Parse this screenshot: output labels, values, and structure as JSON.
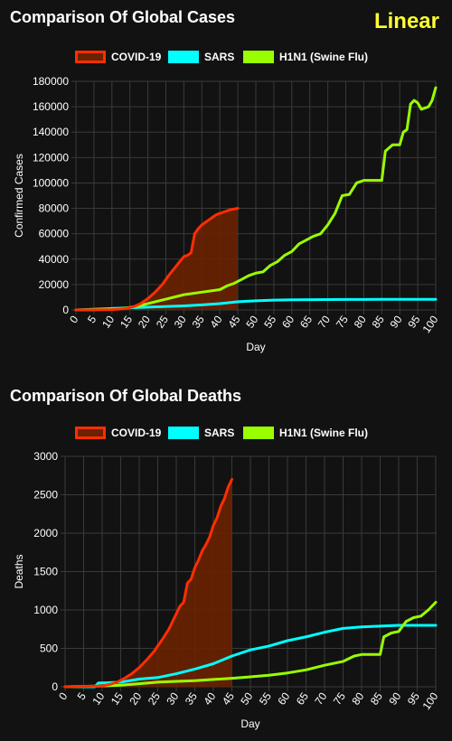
{
  "scale_label": "Linear",
  "colors": {
    "covid": "#ff2e00",
    "covid_fill": "#6a2200",
    "sars": "#00ffff",
    "h1n1": "#99ff00",
    "grid": "#3a3a3a",
    "background": "#121212"
  },
  "chart_data": [
    {
      "type": "line",
      "title": "Comparison Of Global Cases",
      "xlabel": "Day",
      "ylabel": "Confirmed Cases",
      "xlim": [
        0,
        100
      ],
      "ylim": [
        0,
        180000
      ],
      "x_ticks": [
        "0",
        "5",
        "10",
        "15",
        "20",
        "25",
        "30",
        "35",
        "40",
        "45",
        "50",
        "55",
        "60",
        "65",
        "70",
        "75",
        "80",
        "85",
        "90",
        "95",
        "100"
      ],
      "y_ticks": [
        "0",
        "20000",
        "40000",
        "60000",
        "80000",
        "100000",
        "120000",
        "140000",
        "160000",
        "180000"
      ],
      "grid": true,
      "legend_position": "top",
      "series": [
        {
          "name": "COVID-19",
          "fill": true,
          "x": [
            0,
            5,
            10,
            12,
            14,
            16,
            18,
            20,
            22,
            24,
            26,
            28,
            30,
            31,
            32,
            33,
            34,
            35,
            36,
            37,
            38,
            39,
            40,
            41,
            42,
            43,
            44,
            45
          ],
          "y": [
            0,
            50,
            300,
            600,
            1200,
            2500,
            5000,
            9000,
            14000,
            20000,
            28000,
            35000,
            42000,
            43000,
            45000,
            60000,
            64000,
            67000,
            69000,
            71000,
            73000,
            75000,
            76000,
            77000,
            78000,
            79000,
            79500,
            80000
          ]
        },
        {
          "name": "SARS",
          "fill": false,
          "x": [
            0,
            10,
            20,
            30,
            35,
            40,
            45,
            50,
            55,
            60,
            65,
            70,
            75,
            80,
            85,
            90,
            95,
            100
          ],
          "y": [
            0,
            1200,
            2200,
            3200,
            4000,
            5000,
            6500,
            7200,
            7700,
            8000,
            8100,
            8200,
            8250,
            8300,
            8350,
            8400,
            8400,
            8400
          ]
        },
        {
          "name": "H1N1 (Swine Flu)",
          "fill": false,
          "x": [
            0,
            10,
            14,
            18,
            20,
            25,
            30,
            35,
            40,
            42,
            44,
            46,
            48,
            50,
            52,
            54,
            56,
            58,
            60,
            62,
            64,
            66,
            68,
            70,
            72,
            74,
            76,
            78,
            80,
            82,
            84,
            85,
            86,
            88,
            90,
            91,
            92,
            93,
            94,
            95,
            96,
            98,
            99,
            100
          ],
          "y": [
            0,
            500,
            1500,
            3500,
            5000,
            8500,
            12000,
            14000,
            16000,
            19000,
            21000,
            24000,
            27000,
            29000,
            30000,
            35000,
            38000,
            43000,
            46000,
            52000,
            55000,
            58000,
            60000,
            67000,
            76000,
            90000,
            91000,
            100000,
            102000,
            102000,
            102000,
            102000,
            125000,
            130000,
            130000,
            140000,
            142000,
            162000,
            165000,
            163000,
            158000,
            160000,
            165000,
            175000
          ]
        }
      ]
    },
    {
      "type": "line",
      "title": "Comparison Of Global Deaths",
      "xlabel": "Day",
      "ylabel": "Deaths",
      "xlim": [
        0,
        100
      ],
      "ylim": [
        0,
        3000
      ],
      "x_ticks": [
        "0",
        "5",
        "10",
        "15",
        "20",
        "25",
        "30",
        "35",
        "40",
        "45",
        "50",
        "55",
        "60",
        "65",
        "70",
        "75",
        "80",
        "85",
        "90",
        "95",
        "100"
      ],
      "y_ticks": [
        "0",
        "500",
        "1000",
        "1500",
        "2000",
        "2500",
        "3000"
      ],
      "grid": true,
      "legend_position": "top",
      "series": [
        {
          "name": "COVID-19",
          "fill": true,
          "x": [
            0,
            10,
            12,
            14,
            16,
            18,
            20,
            22,
            24,
            26,
            28,
            30,
            31,
            32,
            33,
            34,
            35,
            36,
            37,
            38,
            39,
            40,
            41,
            42,
            43,
            44,
            45
          ],
          "y": [
            0,
            10,
            30,
            60,
            110,
            170,
            250,
            350,
            460,
            600,
            750,
            950,
            1050,
            1100,
            1350,
            1400,
            1550,
            1650,
            1770,
            1850,
            1950,
            2100,
            2200,
            2350,
            2450,
            2600,
            2700
          ]
        },
        {
          "name": "SARS",
          "fill": false,
          "x": [
            0,
            8,
            9,
            10,
            15,
            20,
            25,
            30,
            35,
            40,
            45,
            50,
            55,
            60,
            65,
            70,
            75,
            80,
            85,
            90,
            95,
            100
          ],
          "y": [
            0,
            0,
            50,
            50,
            60,
            100,
            120,
            170,
            230,
            300,
            400,
            480,
            530,
            600,
            650,
            710,
            760,
            780,
            790,
            800,
            800,
            800
          ]
        },
        {
          "name": "H1N1 (Swine Flu)",
          "fill": false,
          "x": [
            0,
            10,
            15,
            20,
            25,
            30,
            35,
            40,
            45,
            50,
            55,
            60,
            65,
            70,
            75,
            78,
            80,
            82,
            84,
            85,
            86,
            88,
            90,
            92,
            94,
            96,
            98,
            100
          ],
          "y": [
            0,
            10,
            20,
            40,
            60,
            70,
            80,
            95,
            110,
            130,
            150,
            180,
            220,
            280,
            330,
            400,
            420,
            420,
            420,
            420,
            650,
            700,
            720,
            850,
            900,
            920,
            1000,
            1100
          ]
        }
      ]
    }
  ]
}
